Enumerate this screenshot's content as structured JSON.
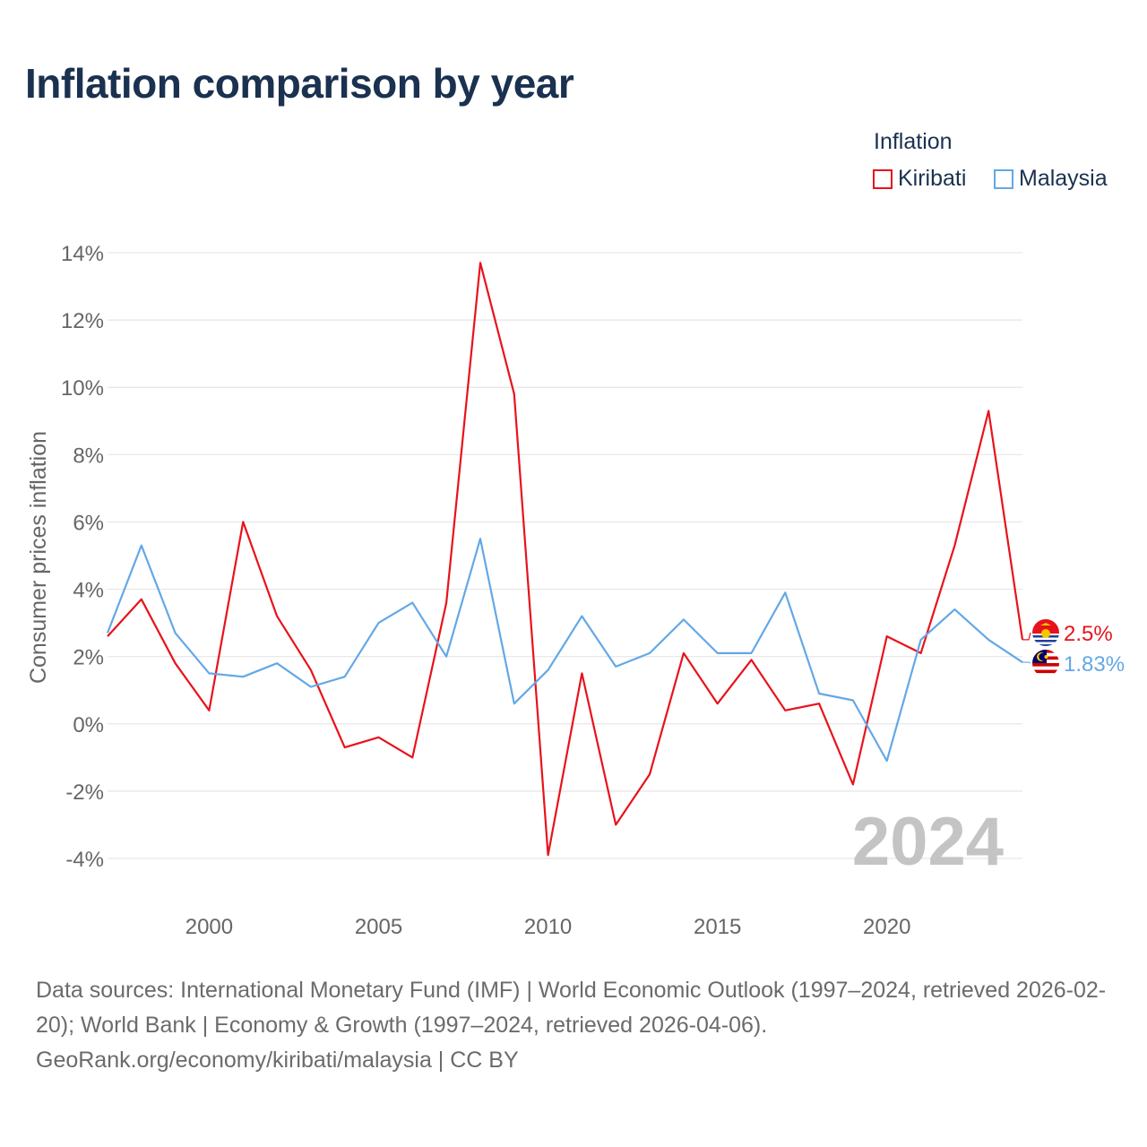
{
  "title": "Inflation comparison by year",
  "legend": {
    "title": "Inflation",
    "items": [
      {
        "label": "Kiribati",
        "color": "#e8121b"
      },
      {
        "label": "Malaysia",
        "color": "#63a8e6"
      }
    ]
  },
  "chart_data": {
    "type": "line",
    "ylabel": "Consumer prices inflation",
    "xlabel": "",
    "ylim": [
      -4,
      14
    ],
    "xlim": [
      1997,
      2024
    ],
    "y_ticks": [
      14,
      12,
      10,
      8,
      6,
      4,
      2,
      0,
      -2,
      -4
    ],
    "y_tick_labels": [
      "14%",
      "12%",
      "10%",
      "8%",
      "6%",
      "4%",
      "2%",
      "0%",
      "-2%",
      "-4%"
    ],
    "x_ticks": [
      2000,
      2005,
      2010,
      2015,
      2020
    ],
    "x_tick_labels": [
      "2000",
      "2005",
      "2010",
      "2015",
      "2020"
    ],
    "year_watermark": "2024",
    "x": [
      1997,
      1998,
      1999,
      2000,
      2001,
      2002,
      2003,
      2004,
      2005,
      2006,
      2007,
      2008,
      2009,
      2010,
      2011,
      2012,
      2013,
      2014,
      2015,
      2016,
      2017,
      2018,
      2019,
      2020,
      2021,
      2022,
      2023,
      2024
    ],
    "series": [
      {
        "name": "Kiribati",
        "color": "#e8121b",
        "end_label": "2.5%",
        "flag": "kiribati-flag-icon",
        "values": [
          2.6,
          3.7,
          1.8,
          0.4,
          6.0,
          3.2,
          1.6,
          -0.7,
          -0.4,
          -1.0,
          3.6,
          13.7,
          9.8,
          -3.9,
          1.5,
          -3.0,
          -1.5,
          2.1,
          0.6,
          1.9,
          0.4,
          0.6,
          -1.8,
          2.6,
          2.1,
          5.3,
          9.3,
          2.5
        ]
      },
      {
        "name": "Malaysia",
        "color": "#63a8e6",
        "end_label": "1.83%",
        "flag": "malaysia-flag-icon",
        "values": [
          2.7,
          5.3,
          2.7,
          1.5,
          1.4,
          1.8,
          1.1,
          1.4,
          3.0,
          3.6,
          2.0,
          5.5,
          0.6,
          1.6,
          3.2,
          1.7,
          2.1,
          3.1,
          2.1,
          2.1,
          3.9,
          0.9,
          0.7,
          -1.1,
          2.5,
          3.4,
          2.5,
          1.83
        ]
      }
    ]
  },
  "footer": {
    "line1": "Data sources: International Monetary Fund (IMF) | World Economic Outlook (1997–2024, retrieved 2026-02-20); World Bank | Economy & Growth (1997–2024, retrieved 2026-04-06).",
    "line2": "GeoRank.org/economy/kiribati/malaysia | CC BY"
  }
}
